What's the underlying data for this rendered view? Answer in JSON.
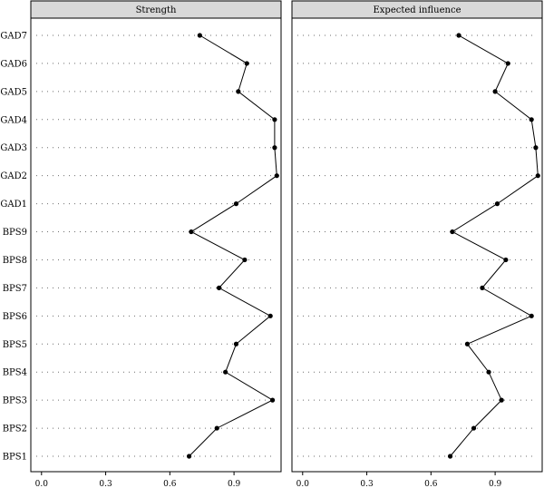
{
  "chart_data": [
    {
      "type": "line",
      "title": "Strength",
      "categories": [
        "GAD7",
        "GAD6",
        "GAD5",
        "GAD4",
        "GAD3",
        "GAD2",
        "GAD1",
        "BPS9",
        "BPS8",
        "BPS7",
        "BPS6",
        "BPS5",
        "BPS4",
        "BPS3",
        "BPS2",
        "BPS1"
      ],
      "values": [
        0.74,
        0.96,
        0.92,
        1.09,
        1.09,
        1.1,
        0.91,
        0.7,
        0.95,
        0.83,
        1.07,
        0.91,
        0.86,
        1.08,
        0.82,
        0.69
      ],
      "xticks": [
        "0.0",
        "0.3",
        "0.6",
        "0.9"
      ],
      "xlim": [
        -0.05,
        1.12
      ],
      "grid": "dotted horizontal"
    },
    {
      "type": "line",
      "title": "Expected influence",
      "categories": [
        "GAD7",
        "GAD6",
        "GAD5",
        "GAD4",
        "GAD3",
        "GAD2",
        "GAD1",
        "BPS9",
        "BPS8",
        "BPS7",
        "BPS6",
        "BPS5",
        "BPS4",
        "BPS3",
        "BPS2",
        "BPS1"
      ],
      "values": [
        0.73,
        0.96,
        0.9,
        1.07,
        1.09,
        1.1,
        0.91,
        0.7,
        0.95,
        0.84,
        1.07,
        0.77,
        0.87,
        0.93,
        0.8,
        0.69
      ],
      "xticks": [
        "0.0",
        "0.3",
        "0.6",
        "0.9"
      ],
      "xlim": [
        -0.05,
        1.12
      ],
      "grid": "dotted horizontal"
    }
  ],
  "colors": {
    "strip_fill": "#d9d9d9",
    "line": "#000000",
    "grid": "#6e6e6e"
  }
}
